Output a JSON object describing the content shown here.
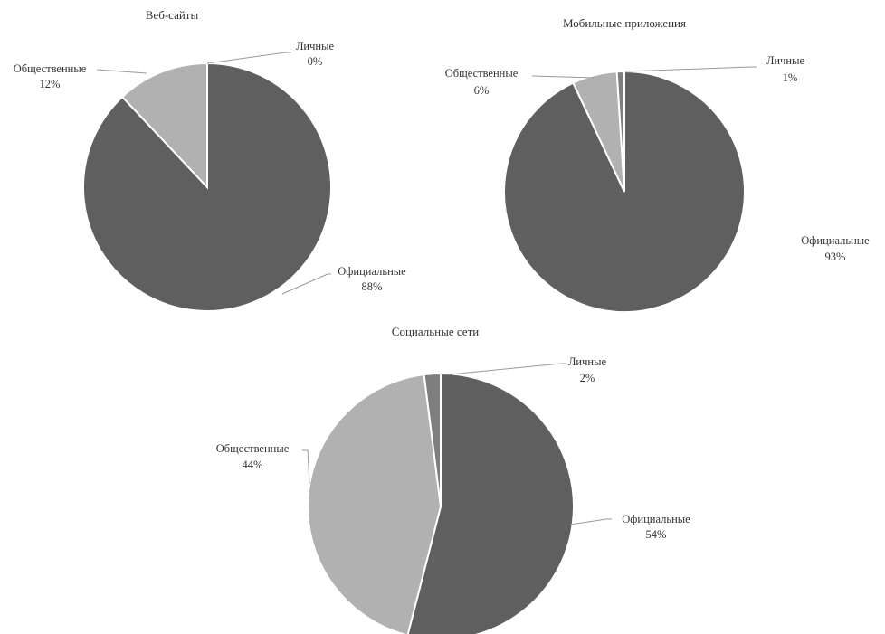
{
  "chart_data": [
    {
      "type": "pie",
      "title": "Веб-сайты",
      "slices": [
        {
          "label": "Официальные",
          "value": 88,
          "value_label": "88%",
          "color": "#5f5f5f"
        },
        {
          "label": "Общественные",
          "value": 12,
          "value_label": "12%",
          "color": "#b1b1b1"
        },
        {
          "label": "Личные",
          "value": 0,
          "value_label": "0%",
          "color": "#7e7e7e"
        }
      ]
    },
    {
      "type": "pie",
      "title": "Мобильные приложения",
      "slices": [
        {
          "label": "Официальные",
          "value": 93,
          "value_label": "93%",
          "color": "#5f5f5f"
        },
        {
          "label": "Общественные",
          "value": 6,
          "value_label": "6%",
          "color": "#b1b1b1"
        },
        {
          "label": "Личные",
          "value": 1,
          "value_label": "1%",
          "color": "#7e7e7e"
        }
      ]
    },
    {
      "type": "pie",
      "title": "Социальные сети",
      "slices": [
        {
          "label": "Официальные",
          "value": 54,
          "value_label": "54%",
          "color": "#5f5f5f"
        },
        {
          "label": "Общественные",
          "value": 44,
          "value_label": "44%",
          "color": "#b1b1b1"
        },
        {
          "label": "Личные",
          "value": 2,
          "value_label": "2%",
          "color": "#7e7e7e"
        }
      ]
    }
  ]
}
